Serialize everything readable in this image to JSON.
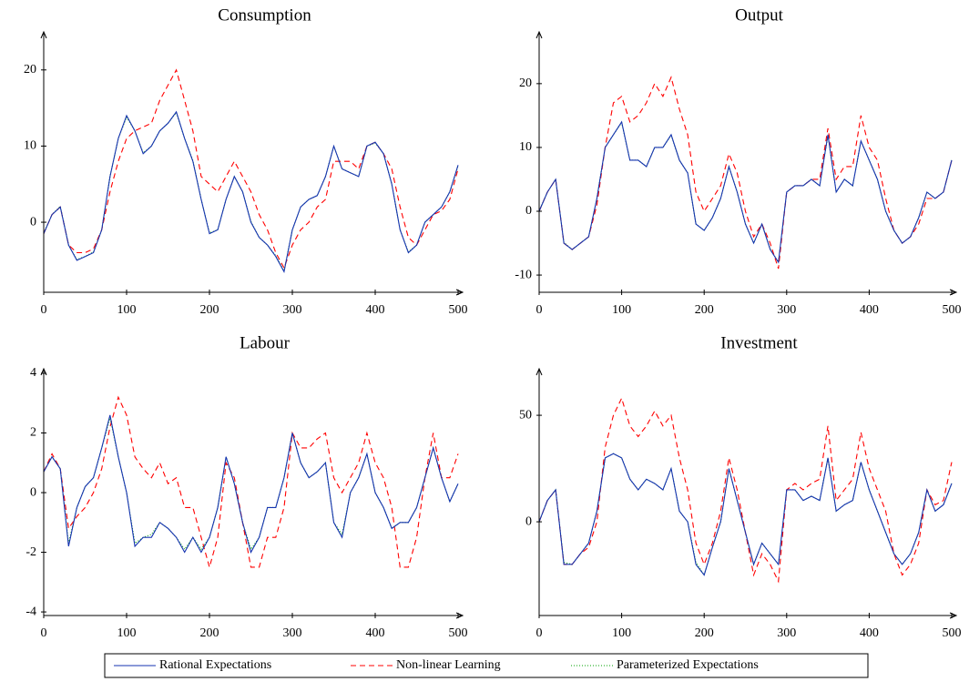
{
  "legend": [
    {
      "name": "Rational Expectations",
      "color": "#1533b0",
      "dash": "none"
    },
    {
      "name": "Non-linear Learning",
      "color": "#ff0000",
      "dash": "6 4"
    },
    {
      "name": "Parameterized Expectations",
      "color": "#00a000",
      "dash": "1 2"
    }
  ],
  "chart_data": [
    {
      "type": "line",
      "title": "Consumption",
      "x": [
        0,
        10,
        20,
        30,
        40,
        50,
        60,
        70,
        80,
        90,
        100,
        110,
        120,
        130,
        140,
        150,
        160,
        170,
        180,
        190,
        200,
        210,
        220,
        230,
        240,
        250,
        260,
        270,
        280,
        290,
        300,
        310,
        320,
        330,
        340,
        350,
        360,
        370,
        380,
        390,
        400,
        410,
        420,
        430,
        440,
        450,
        460,
        470,
        480,
        490,
        500
      ],
      "xlim": [
        0,
        500
      ],
      "xticks": [
        0,
        100,
        200,
        300,
        400,
        500
      ],
      "ylim": [
        -9.2,
        24.4
      ],
      "yticks": [
        0,
        10,
        20
      ],
      "series": [
        {
          "values": [
            -1.5,
            1,
            2,
            -3,
            -5,
            -4.5,
            -4,
            -1,
            6,
            11,
            14,
            12,
            9,
            10,
            12,
            13,
            14.5,
            11,
            8,
            3,
            -1.5,
            -1,
            3,
            6,
            4,
            0,
            -2,
            -3,
            -4.5,
            -6.5,
            -1,
            2,
            3,
            3.5,
            6,
            10,
            7,
            6.5,
            6,
            10,
            10.5,
            9,
            5,
            -1,
            -4,
            -3,
            0,
            1,
            2,
            4,
            7.5
          ]
        },
        {
          "values": [
            -1.5,
            1,
            2,
            -3,
            -4,
            -4,
            -3.5,
            -1,
            4,
            8,
            11,
            12,
            12.5,
            13,
            16,
            18,
            20,
            16,
            12,
            6,
            5,
            4,
            6,
            8,
            6,
            4,
            1,
            -1,
            -4,
            -6,
            -3,
            -1,
            0,
            2,
            3,
            8,
            8,
            8,
            7,
            10,
            10.5,
            9,
            7,
            2,
            -2,
            -3,
            -1,
            1,
            1.5,
            3,
            7
          ]
        },
        {
          "values": [
            -1.4,
            1,
            2.1,
            -3,
            -4.9,
            -4.5,
            -3.9,
            -1,
            6,
            11,
            13.8,
            12,
            9.1,
            10,
            12,
            13,
            14.4,
            11,
            8.1,
            3,
            -1.4,
            -1,
            3,
            6,
            4,
            0.1,
            -2,
            -3,
            -4.4,
            -6.4,
            -1,
            2,
            3,
            3.5,
            6,
            10,
            7,
            6.5,
            6,
            10,
            10.4,
            9,
            5,
            -1,
            -3.9,
            -3,
            0,
            1,
            2,
            4,
            7.4
          ]
        }
      ]
    },
    {
      "type": "line",
      "title": "Output",
      "x": [
        0,
        10,
        20,
        30,
        40,
        50,
        60,
        70,
        80,
        90,
        100,
        110,
        120,
        130,
        140,
        150,
        160,
        170,
        180,
        190,
        200,
        210,
        220,
        230,
        240,
        250,
        260,
        270,
        280,
        290,
        300,
        310,
        320,
        330,
        340,
        350,
        360,
        370,
        380,
        390,
        400,
        410,
        420,
        430,
        440,
        450,
        460,
        470,
        480,
        490,
        500
      ],
      "xlim": [
        0,
        500
      ],
      "xticks": [
        0,
        100,
        200,
        300,
        400,
        500
      ],
      "ylim": [
        -12.7,
        27.4
      ],
      "yticks": [
        -10,
        0,
        10,
        20
      ],
      "series": [
        {
          "values": [
            0,
            3,
            5,
            -5,
            -6,
            -5,
            -4,
            2,
            10,
            12,
            14,
            8,
            8,
            7,
            10,
            10,
            12,
            8,
            6,
            -2,
            -3,
            -1,
            2,
            7,
            3,
            -2,
            -5,
            -2,
            -6,
            -8,
            3,
            4,
            4,
            5,
            4,
            12,
            3,
            5,
            4,
            11,
            8,
            5,
            0,
            -3,
            -5,
            -4,
            -1,
            3,
            2,
            3,
            8
          ]
        },
        {
          "values": [
            0,
            3,
            5,
            -5,
            -6,
            -5,
            -4,
            1,
            10,
            17,
            18,
            14,
            15,
            17,
            20,
            18,
            21,
            16,
            12,
            3,
            0,
            2,
            4,
            9,
            6,
            0,
            -4,
            -2,
            -5,
            -9,
            3,
            4,
            4,
            5,
            5,
            13,
            5,
            7,
            7,
            15,
            10,
            8,
            2,
            -3,
            -5,
            -4,
            -2,
            2,
            2,
            3,
            8
          ]
        },
        {
          "values": [
            0.1,
            3,
            5,
            -4.9,
            -6,
            -5,
            -4,
            2,
            10,
            12,
            13.9,
            8,
            8,
            7,
            10,
            10,
            11.9,
            8,
            6,
            -2,
            -3,
            -1,
            2,
            7,
            3,
            -2,
            -5,
            -2,
            -5.9,
            -8,
            3,
            4,
            4,
            5,
            4,
            11.9,
            3,
            5,
            4,
            11,
            8,
            5,
            0,
            -3,
            -5,
            -4,
            -1,
            3,
            2,
            3,
            8
          ]
        }
      ]
    },
    {
      "type": "line",
      "title": "Labour",
      "x": [
        0,
        10,
        20,
        30,
        40,
        50,
        60,
        70,
        80,
        90,
        100,
        110,
        120,
        130,
        140,
        150,
        160,
        170,
        180,
        190,
        200,
        210,
        220,
        230,
        240,
        250,
        260,
        270,
        280,
        290,
        300,
        310,
        320,
        330,
        340,
        350,
        360,
        370,
        380,
        390,
        400,
        410,
        420,
        430,
        440,
        450,
        460,
        470,
        480,
        490,
        500
      ],
      "xlim": [
        0,
        500
      ],
      "xticks": [
        0,
        100,
        200,
        300,
        400,
        500
      ],
      "ylim": [
        -4.12,
        4
      ],
      "yticks": [
        -4,
        -2,
        0,
        2,
        4
      ],
      "series": [
        {
          "values": [
            0.7,
            1.2,
            0.8,
            -1.8,
            -0.5,
            0.2,
            0.5,
            1.5,
            2.6,
            1.2,
            0,
            -1.8,
            -1.5,
            -1.5,
            -1,
            -1.2,
            -1.5,
            -2,
            -1.5,
            -2,
            -1.5,
            -0.5,
            1.2,
            0.3,
            -1,
            -2,
            -1.5,
            -0.5,
            -0.5,
            0.5,
            2,
            1,
            0.5,
            0.7,
            1,
            -1,
            -1.5,
            0,
            0.5,
            1.3,
            0,
            -0.5,
            -1.2,
            -1,
            -1,
            -0.5,
            0.5,
            1.5,
            0.5,
            -0.3,
            0.3
          ]
        },
        {
          "values": [
            0.7,
            1.3,
            0.8,
            -1.2,
            -0.8,
            -0.5,
            0,
            0.8,
            2.2,
            3.2,
            2.6,
            1.2,
            0.8,
            0.5,
            1,
            0.3,
            0.5,
            -0.5,
            -0.5,
            -1.5,
            -2.5,
            -1.5,
            1,
            0.5,
            -1,
            -2.5,
            -2.5,
            -1.5,
            -1.5,
            -0.5,
            2,
            1.5,
            1.5,
            1.8,
            2,
            0.5,
            0,
            0.5,
            1,
            2,
            1,
            0.5,
            -0.5,
            -2.5,
            -2.5,
            -1.5,
            0.5,
            2,
            0.5,
            0.5,
            1.3
          ]
        },
        {
          "values": [
            0.7,
            1.2,
            0.8,
            -1.7,
            -0.5,
            0.2,
            0.5,
            1.5,
            2.5,
            1.2,
            0,
            -1.7,
            -1.5,
            -1.4,
            -1,
            -1.2,
            -1.5,
            -1.9,
            -1.5,
            -1.9,
            -1.5,
            -0.5,
            1.2,
            0.3,
            -1,
            -1.9,
            -1.5,
            -0.5,
            -0.5,
            0.5,
            2,
            1,
            0.5,
            0.7,
            1,
            -1,
            -1.4,
            0,
            0.5,
            1.3,
            0,
            -0.5,
            -1.2,
            -1,
            -1,
            -0.5,
            0.5,
            1.5,
            0.5,
            -0.3,
            0.3
          ]
        }
      ]
    },
    {
      "type": "line",
      "title": "Investment",
      "x": [
        0,
        10,
        20,
        30,
        40,
        50,
        60,
        70,
        80,
        90,
        100,
        110,
        120,
        130,
        140,
        150,
        160,
        170,
        180,
        190,
        200,
        210,
        220,
        230,
        240,
        250,
        260,
        270,
        280,
        290,
        300,
        310,
        320,
        330,
        340,
        350,
        360,
        370,
        380,
        390,
        400,
        410,
        420,
        430,
        440,
        450,
        460,
        470,
        480,
        490,
        500
      ],
      "xlim": [
        0,
        500
      ],
      "xticks": [
        0,
        100,
        200,
        300,
        400,
        500
      ],
      "ylim": [
        -44,
        69.7
      ],
      "yticks": [
        0,
        50
      ],
      "series": [
        {
          "values": [
            0,
            10,
            15,
            -20,
            -20,
            -15,
            -10,
            5,
            30,
            32,
            30,
            20,
            15,
            20,
            18,
            15,
            25,
            5,
            0,
            -20,
            -25,
            -12,
            0,
            25,
            10,
            -5,
            -20,
            -10,
            -15,
            -20,
            15,
            15,
            10,
            12,
            10,
            30,
            5,
            8,
            10,
            28,
            15,
            5,
            -5,
            -15,
            -20,
            -15,
            -5,
            15,
            5,
            8,
            18
          ]
        },
        {
          "values": [
            0,
            10,
            15,
            -20,
            -20,
            -15,
            -12,
            0,
            35,
            50,
            58,
            45,
            40,
            45,
            52,
            45,
            50,
            30,
            15,
            -10,
            -20,
            -10,
            5,
            30,
            15,
            -5,
            -25,
            -15,
            -20,
            -28,
            15,
            18,
            15,
            18,
            20,
            45,
            10,
            15,
            20,
            42,
            25,
            15,
            5,
            -15,
            -25,
            -20,
            -10,
            15,
            8,
            10,
            28
          ]
        },
        {
          "values": [
            0,
            10,
            15,
            -19,
            -20,
            -15,
            -10,
            5,
            30,
            32,
            30,
            20,
            15,
            20,
            18,
            15,
            25,
            5,
            0,
            -19,
            -25,
            -12,
            0,
            25,
            10,
            -5,
            -20,
            -10,
            -15,
            -20,
            15,
            15,
            10,
            12,
            10,
            30,
            5,
            8,
            10,
            28,
            15,
            5,
            -5,
            -15,
            -20,
            -15,
            -5,
            15,
            5,
            8,
            18
          ]
        }
      ]
    }
  ]
}
